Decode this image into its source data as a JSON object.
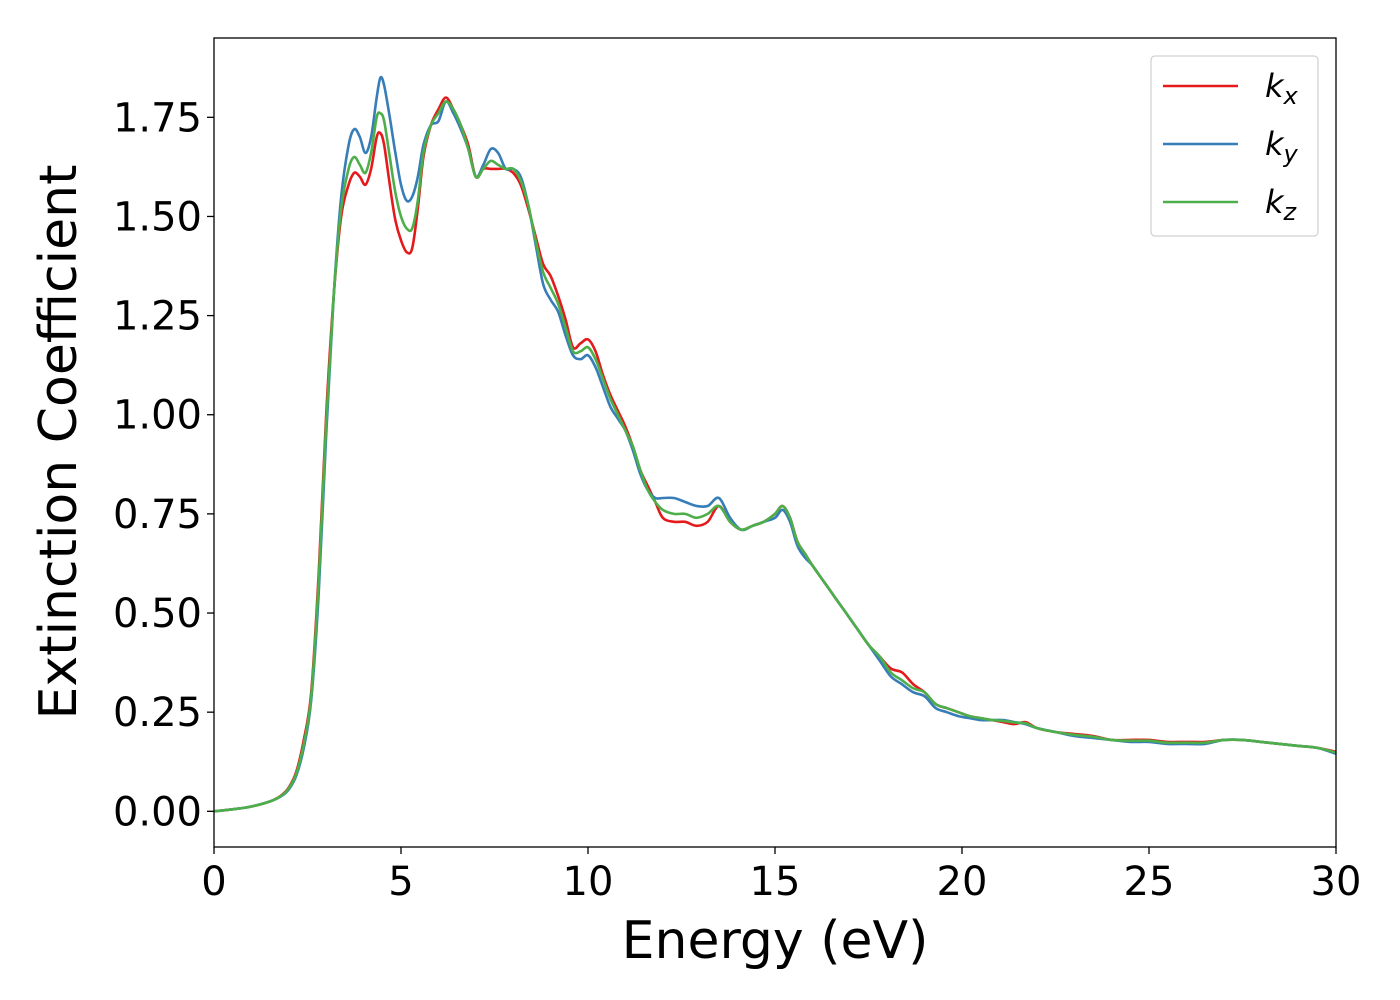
{
  "chart_data": {
    "type": "line",
    "title": "",
    "xlabel": "Energy (eV)",
    "ylabel": "Extinction Coefficient",
    "xlim": [
      0,
      30
    ],
    "ylim": [
      -0.09,
      1.95
    ],
    "xticks": [
      0,
      5,
      10,
      15,
      20,
      25,
      30
    ],
    "xtick_labels": [
      "0",
      "5",
      "10",
      "15",
      "20",
      "25",
      "30"
    ],
    "yticks": [
      0,
      0.25,
      0.5,
      0.75,
      1.0,
      1.25,
      1.5,
      1.75
    ],
    "ytick_labels": [
      "0.00",
      "0.25",
      "0.50",
      "0.75",
      "1.00",
      "1.25",
      "1.50",
      "1.75"
    ],
    "grid": false,
    "legend_position": "top-right",
    "series": [
      {
        "name": "k",
        "subscript": "x",
        "color": "#e41a1c",
        "x": [
          0,
          0.5,
          1,
          1.5,
          1.8,
          2,
          2.2,
          2.4,
          2.6,
          2.8,
          3,
          3.2,
          3.4,
          3.6,
          3.75,
          3.9,
          4.05,
          4.2,
          4.35,
          4.45,
          4.55,
          4.7,
          4.85,
          5,
          5.15,
          5.3,
          5.45,
          5.6,
          5.8,
          6,
          6.2,
          6.4,
          6.6,
          6.8,
          7,
          7.2,
          7.4,
          7.6,
          7.8,
          8,
          8.2,
          8.4,
          8.6,
          8.8,
          9,
          9.2,
          9.4,
          9.6,
          9.8,
          10,
          10.2,
          10.4,
          10.6,
          10.8,
          11,
          11.2,
          11.4,
          11.6,
          11.8,
          12,
          12.3,
          12.6,
          12.9,
          13.2,
          13.5,
          13.8,
          14.1,
          14.4,
          14.7,
          15,
          15.2,
          15.4,
          15.6,
          15.8,
          16,
          16.3,
          16.6,
          16.9,
          17.2,
          17.5,
          17.8,
          18.1,
          18.4,
          18.7,
          19,
          19.3,
          19.6,
          19.9,
          20.2,
          20.5,
          20.8,
          21.1,
          21.4,
          21.7,
          22,
          22.5,
          23,
          23.5,
          24,
          24.5,
          25,
          25.5,
          26,
          26.5,
          27,
          27.5,
          28,
          28.5,
          29,
          29.5,
          30
        ],
        "y": [
          0,
          0.005,
          0.012,
          0.025,
          0.04,
          0.06,
          0.1,
          0.18,
          0.3,
          0.6,
          1.0,
          1.3,
          1.5,
          1.58,
          1.61,
          1.6,
          1.58,
          1.62,
          1.7,
          1.71,
          1.68,
          1.58,
          1.49,
          1.44,
          1.41,
          1.42,
          1.52,
          1.65,
          1.73,
          1.77,
          1.8,
          1.77,
          1.73,
          1.68,
          1.6,
          1.62,
          1.62,
          1.62,
          1.62,
          1.61,
          1.58,
          1.52,
          1.45,
          1.38,
          1.35,
          1.3,
          1.24,
          1.17,
          1.18,
          1.19,
          1.16,
          1.1,
          1.05,
          1.01,
          0.97,
          0.92,
          0.86,
          0.82,
          0.78,
          0.74,
          0.73,
          0.73,
          0.72,
          0.73,
          0.77,
          0.73,
          0.71,
          0.72,
          0.73,
          0.75,
          0.77,
          0.74,
          0.68,
          0.65,
          0.62,
          0.58,
          0.54,
          0.5,
          0.46,
          0.42,
          0.39,
          0.36,
          0.35,
          0.32,
          0.3,
          0.27,
          0.26,
          0.25,
          0.24,
          0.235,
          0.23,
          0.225,
          0.22,
          0.225,
          0.21,
          0.2,
          0.195,
          0.19,
          0.18,
          0.18,
          0.18,
          0.175,
          0.175,
          0.175,
          0.18,
          0.18,
          0.175,
          0.17,
          0.165,
          0.16,
          0.15
        ]
      },
      {
        "name": "k",
        "subscript": "y",
        "color": "#377eb8",
        "x": [
          0,
          0.5,
          1,
          1.5,
          1.8,
          2,
          2.2,
          2.4,
          2.6,
          2.8,
          3,
          3.2,
          3.4,
          3.6,
          3.75,
          3.9,
          4.05,
          4.2,
          4.35,
          4.45,
          4.55,
          4.7,
          4.85,
          5,
          5.15,
          5.3,
          5.45,
          5.6,
          5.8,
          6,
          6.2,
          6.4,
          6.6,
          6.8,
          7,
          7.2,
          7.4,
          7.6,
          7.8,
          8,
          8.2,
          8.4,
          8.6,
          8.8,
          9,
          9.2,
          9.4,
          9.6,
          9.8,
          10,
          10.2,
          10.4,
          10.6,
          10.8,
          11,
          11.2,
          11.4,
          11.6,
          11.8,
          12,
          12.3,
          12.6,
          12.9,
          13.2,
          13.5,
          13.8,
          14.1,
          14.4,
          14.7,
          15,
          15.2,
          15.4,
          15.6,
          15.8,
          16,
          16.3,
          16.6,
          16.9,
          17.2,
          17.5,
          17.8,
          18.1,
          18.4,
          18.7,
          19,
          19.3,
          19.6,
          19.9,
          20.2,
          20.5,
          20.8,
          21.1,
          21.4,
          21.7,
          22,
          22.5,
          23,
          23.5,
          24,
          24.5,
          25,
          25.5,
          26,
          26.5,
          27,
          27.5,
          28,
          28.5,
          29,
          29.5,
          30
        ],
        "y": [
          0,
          0.005,
          0.012,
          0.025,
          0.038,
          0.055,
          0.09,
          0.16,
          0.28,
          0.55,
          0.95,
          1.3,
          1.55,
          1.68,
          1.72,
          1.7,
          1.66,
          1.7,
          1.8,
          1.85,
          1.83,
          1.75,
          1.66,
          1.58,
          1.54,
          1.55,
          1.6,
          1.68,
          1.73,
          1.74,
          1.79,
          1.76,
          1.72,
          1.67,
          1.6,
          1.63,
          1.67,
          1.66,
          1.62,
          1.62,
          1.6,
          1.53,
          1.43,
          1.33,
          1.29,
          1.26,
          1.2,
          1.15,
          1.14,
          1.15,
          1.12,
          1.07,
          1.02,
          0.99,
          0.96,
          0.91,
          0.85,
          0.81,
          0.79,
          0.79,
          0.79,
          0.78,
          0.77,
          0.77,
          0.79,
          0.74,
          0.71,
          0.72,
          0.73,
          0.74,
          0.76,
          0.73,
          0.67,
          0.64,
          0.62,
          0.58,
          0.54,
          0.5,
          0.46,
          0.42,
          0.38,
          0.34,
          0.32,
          0.3,
          0.29,
          0.26,
          0.25,
          0.24,
          0.235,
          0.23,
          0.23,
          0.23,
          0.225,
          0.22,
          0.21,
          0.2,
          0.19,
          0.185,
          0.18,
          0.175,
          0.175,
          0.17,
          0.17,
          0.17,
          0.18,
          0.18,
          0.175,
          0.17,
          0.165,
          0.16,
          0.145
        ]
      },
      {
        "name": "k",
        "subscript": "z",
        "color": "#4daf4a",
        "x": [
          0,
          0.5,
          1,
          1.5,
          1.8,
          2,
          2.2,
          2.4,
          2.6,
          2.8,
          3,
          3.2,
          3.4,
          3.6,
          3.75,
          3.9,
          4.05,
          4.2,
          4.35,
          4.45,
          4.55,
          4.7,
          4.85,
          5,
          5.15,
          5.3,
          5.45,
          5.6,
          5.8,
          6,
          6.2,
          6.4,
          6.6,
          6.8,
          7,
          7.2,
          7.4,
          7.6,
          7.8,
          8,
          8.2,
          8.4,
          8.6,
          8.8,
          9,
          9.2,
          9.4,
          9.6,
          9.8,
          10,
          10.2,
          10.4,
          10.6,
          10.8,
          11,
          11.2,
          11.4,
          11.6,
          11.8,
          12,
          12.3,
          12.6,
          12.9,
          13.2,
          13.5,
          13.8,
          14.1,
          14.4,
          14.7,
          15,
          15.2,
          15.4,
          15.6,
          15.8,
          16,
          16.3,
          16.6,
          16.9,
          17.2,
          17.5,
          17.8,
          18.1,
          18.4,
          18.7,
          19,
          19.3,
          19.6,
          19.9,
          20.2,
          20.5,
          20.8,
          21.1,
          21.4,
          21.7,
          22,
          22.5,
          23,
          23.5,
          24,
          24.5,
          25,
          25.5,
          26,
          26.5,
          27,
          27.5,
          28,
          28.5,
          29,
          29.5,
          30
        ],
        "y": [
          0,
          0.005,
          0.012,
          0.025,
          0.039,
          0.058,
          0.095,
          0.17,
          0.29,
          0.58,
          0.98,
          1.3,
          1.52,
          1.62,
          1.65,
          1.63,
          1.61,
          1.66,
          1.75,
          1.76,
          1.74,
          1.65,
          1.56,
          1.5,
          1.47,
          1.47,
          1.54,
          1.66,
          1.73,
          1.76,
          1.79,
          1.77,
          1.73,
          1.67,
          1.6,
          1.62,
          1.64,
          1.63,
          1.62,
          1.62,
          1.59,
          1.53,
          1.44,
          1.36,
          1.32,
          1.28,
          1.22,
          1.16,
          1.16,
          1.17,
          1.14,
          1.09,
          1.04,
          1.0,
          0.96,
          0.92,
          0.86,
          0.81,
          0.78,
          0.76,
          0.75,
          0.75,
          0.74,
          0.75,
          0.77,
          0.73,
          0.71,
          0.72,
          0.73,
          0.75,
          0.77,
          0.74,
          0.68,
          0.65,
          0.62,
          0.58,
          0.54,
          0.5,
          0.46,
          0.42,
          0.39,
          0.35,
          0.33,
          0.31,
          0.3,
          0.27,
          0.26,
          0.25,
          0.24,
          0.235,
          0.23,
          0.228,
          0.224,
          0.222,
          0.21,
          0.2,
          0.193,
          0.188,
          0.18,
          0.178,
          0.178,
          0.173,
          0.173,
          0.173,
          0.18,
          0.18,
          0.175,
          0.17,
          0.165,
          0.16,
          0.148
        ]
      }
    ]
  }
}
